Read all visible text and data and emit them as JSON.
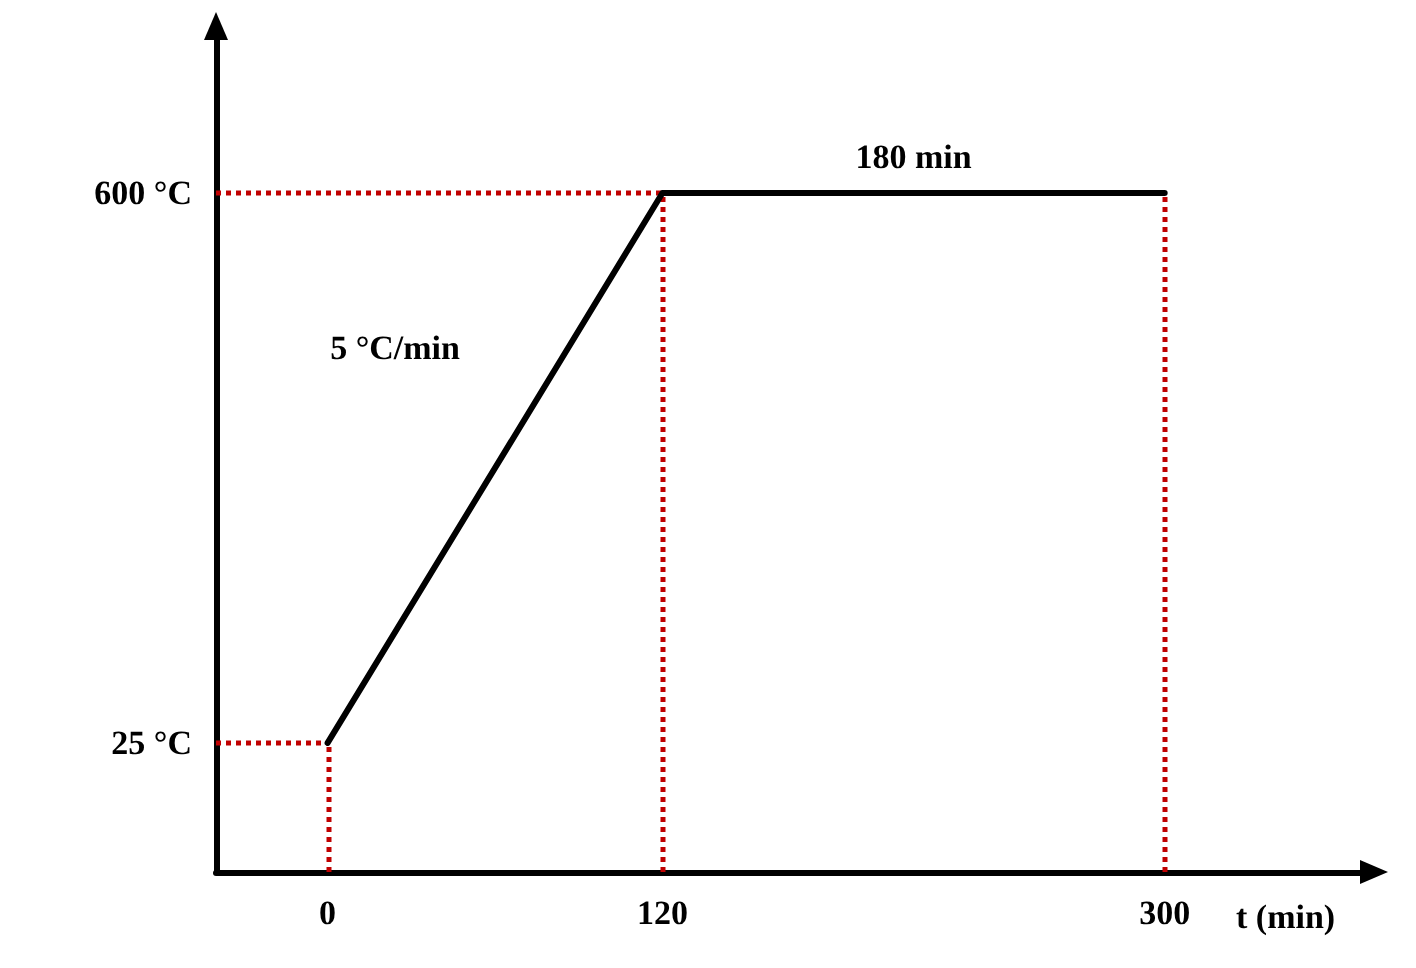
{
  "chart_data": {
    "type": "line",
    "xlabel": "t (min)",
    "x": [
      0,
      120,
      300
    ],
    "series": [
      {
        "color": "#000000",
        "values": [
          25,
          600,
          600
        ]
      }
    ],
    "xlim": [
      -40,
      370
    ],
    "xticks": [
      0,
      120,
      300
    ],
    "ylim": [
      -110,
      760
    ],
    "yticks": [
      {
        "value": 25,
        "label": "25 °C"
      },
      {
        "value": 600,
        "label": "600 °C"
      }
    ],
    "grid": false,
    "marker": "none",
    "line_style": "solid",
    "ref_lines": [
      {
        "axis": "x",
        "value": 0,
        "color": "#c00000",
        "line_style": "dotted"
      },
      {
        "axis": "x",
        "value": 120,
        "color": "#c00000",
        "line_style": "dotted"
      },
      {
        "axis": "x",
        "value": 300,
        "color": "#c00000",
        "line_style": "dotted"
      },
      {
        "axis": "y",
        "value": 25,
        "color": "#c00000",
        "line_style": "dotted"
      },
      {
        "axis": "y",
        "value": 600,
        "color": "#c00000",
        "line_style": "dotted"
      }
    ],
    "annotations": [
      {
        "text": "180 min",
        "x": 210,
        "y": 600
      },
      "5 °C/min"
    ]
  }
}
